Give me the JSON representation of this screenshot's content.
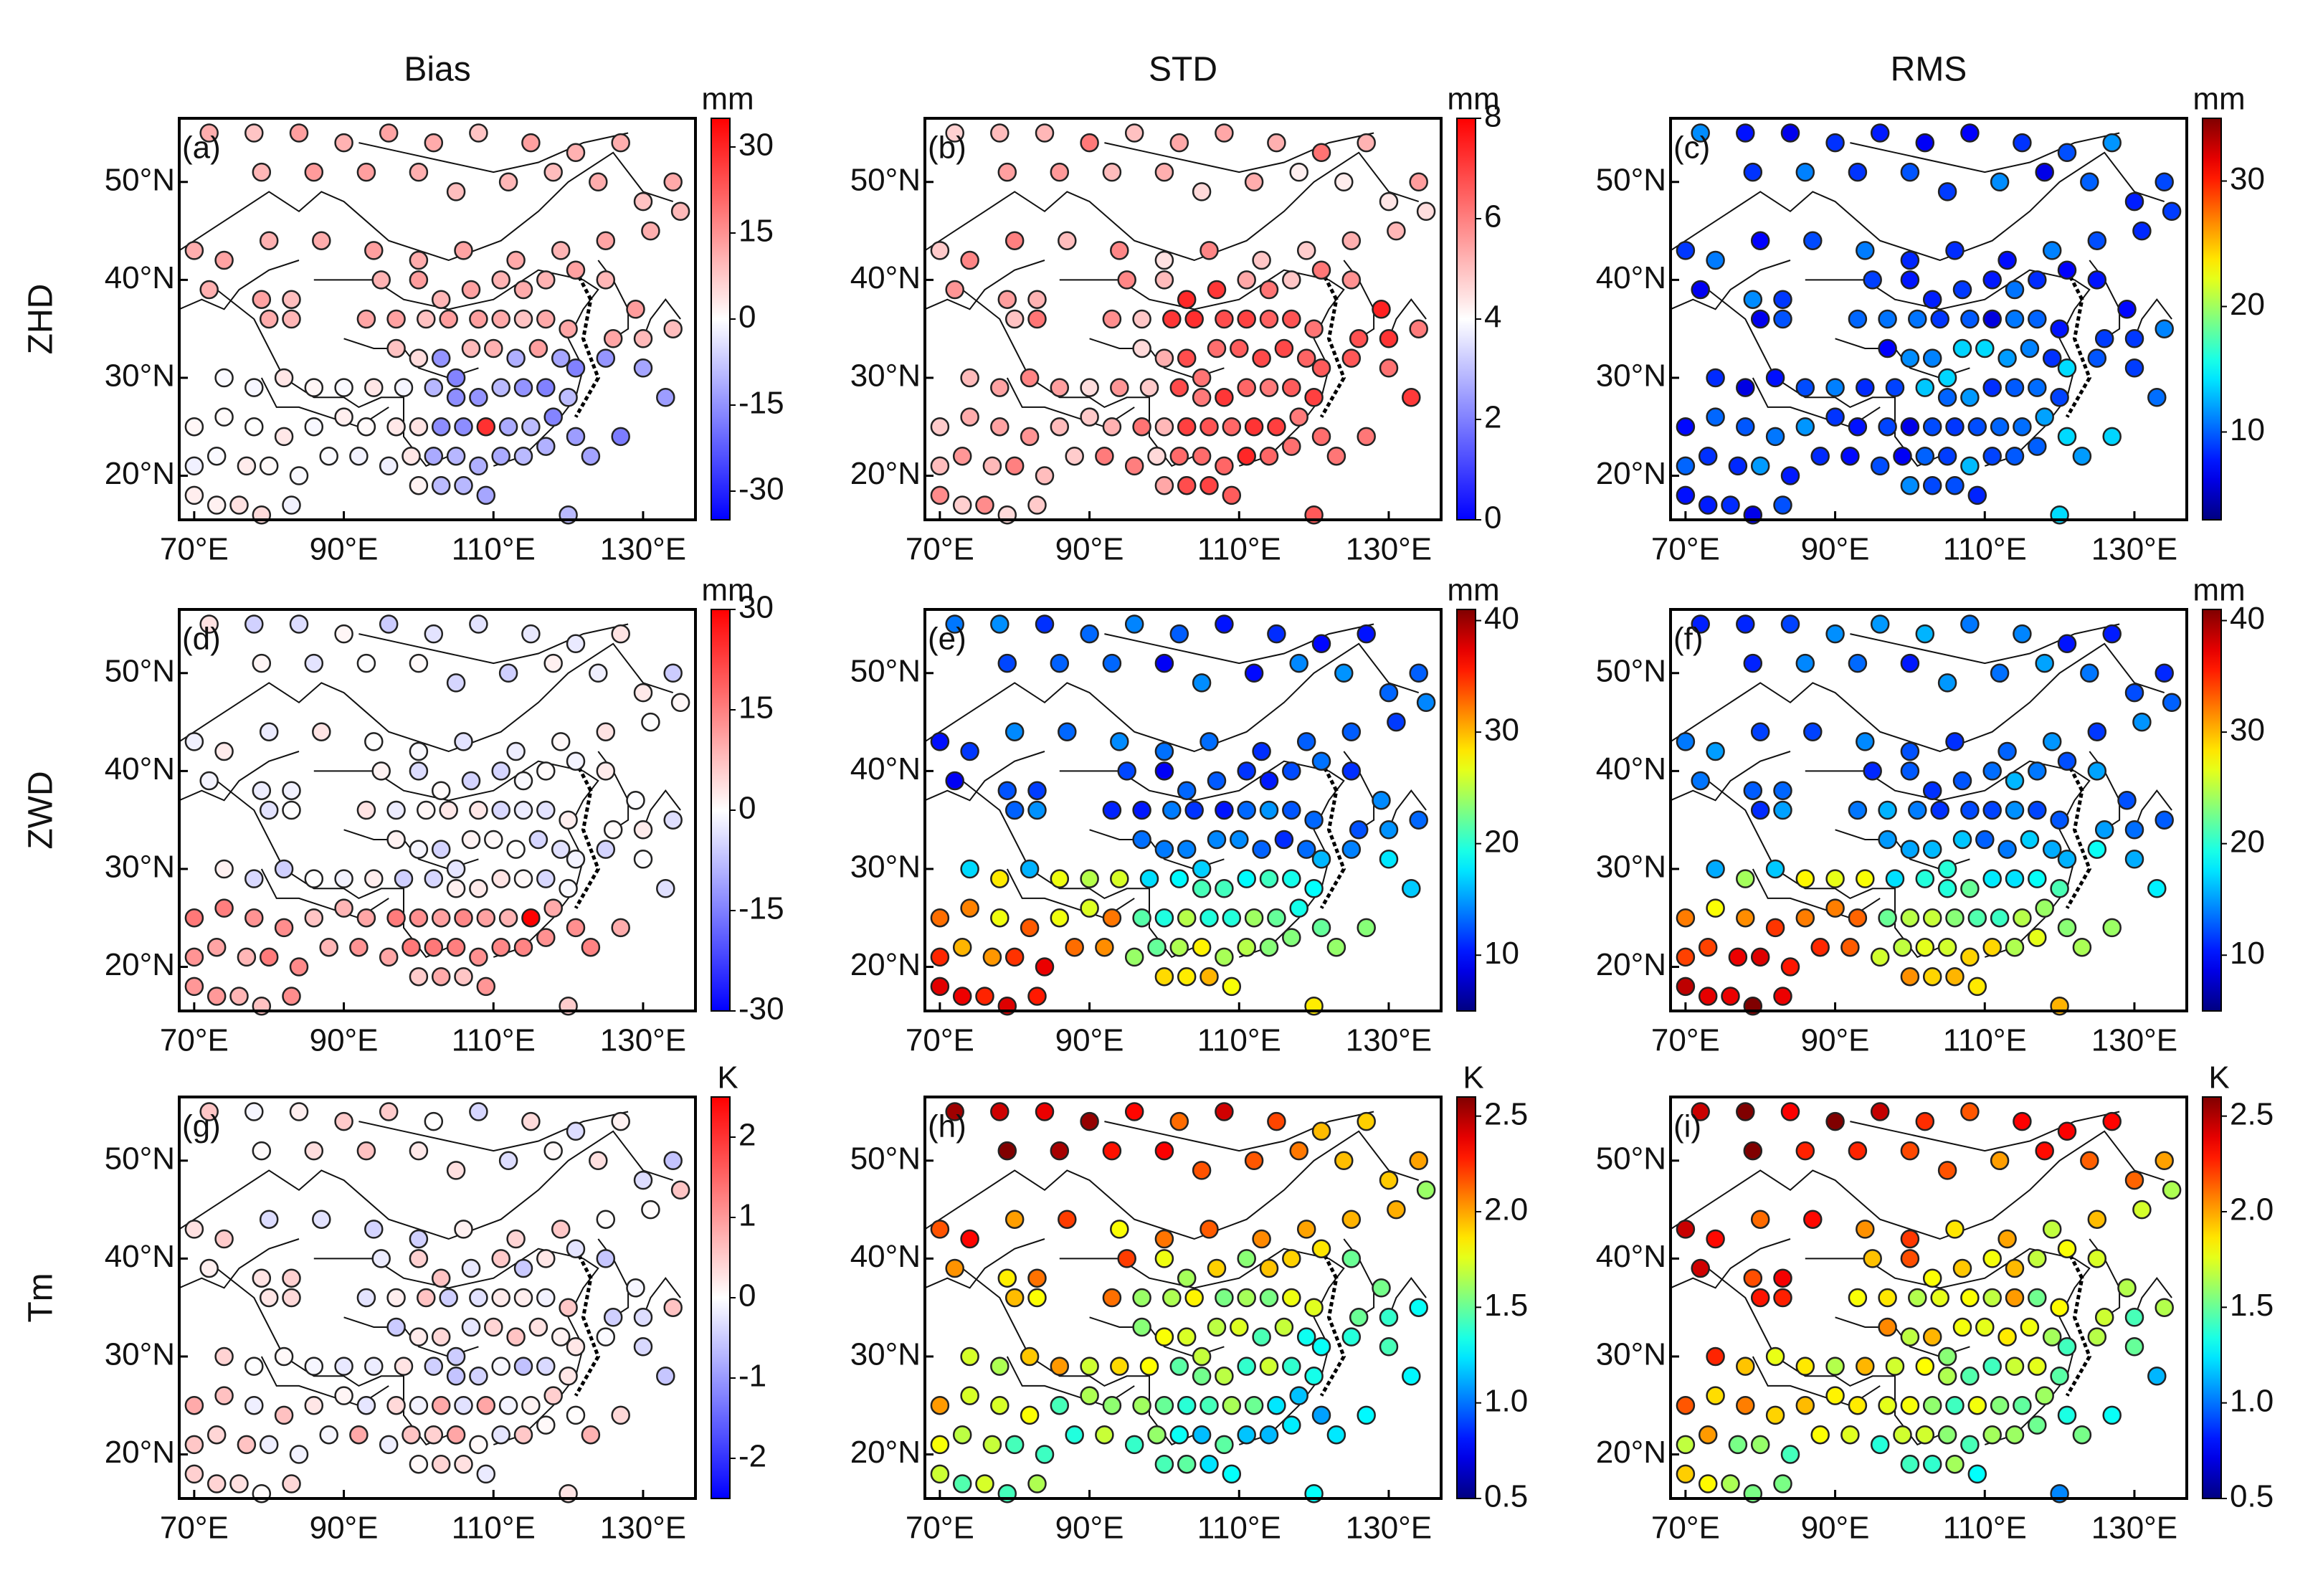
{
  "figure": {
    "column_titles": [
      "Bias",
      "STD",
      "RMS"
    ],
    "row_titles": [
      "ZHD",
      "ZWD",
      "Tm"
    ],
    "lat_ticks": [
      "20°N",
      "30°N",
      "40°N",
      "50°N"
    ],
    "lon_ticks": [
      "70°E",
      "90°E",
      "110°E",
      "130°E"
    ],
    "map_extent": {
      "lon_min": 68,
      "lon_max": 137,
      "lat_min": 15.5,
      "lat_max": 56.5
    }
  },
  "chart_data": [
    {
      "id": "a",
      "type": "scatter",
      "row": "ZHD",
      "column": "Bias",
      "panel_label": "(a)",
      "unit": "mm",
      "colormap": "diverging",
      "cbar_ticks": [
        "-30",
        "-15",
        "0",
        "15",
        "30"
      ],
      "cbar_tick_values": [
        -30,
        -15,
        0,
        15,
        30
      ],
      "range": [
        -35,
        35
      ]
    },
    {
      "id": "b",
      "type": "scatter",
      "row": "ZHD",
      "column": "STD",
      "panel_label": "(b)",
      "unit": "mm",
      "colormap": "diverging",
      "cbar_ticks": [
        "0",
        "2",
        "4",
        "6",
        "8"
      ],
      "cbar_tick_values": [
        0,
        2,
        4,
        6,
        8
      ],
      "range": [
        0,
        8
      ]
    },
    {
      "id": "c",
      "type": "scatter",
      "row": "ZHD",
      "column": "RMS",
      "panel_label": "(c)",
      "unit": "mm",
      "colormap": "jet",
      "cbar_ticks": [
        "10",
        "20",
        "30"
      ],
      "cbar_tick_values": [
        10,
        20,
        30
      ],
      "range": [
        3,
        35
      ]
    },
    {
      "id": "d",
      "type": "scatter",
      "row": "ZWD",
      "column": "Bias",
      "panel_label": "(d)",
      "unit": "mm",
      "colormap": "diverging",
      "cbar_ticks": [
        "-30",
        "-15",
        "0",
        "15",
        "30"
      ],
      "cbar_tick_values": [
        -30,
        -15,
        0,
        15,
        30
      ],
      "range": [
        -30,
        30
      ]
    },
    {
      "id": "e",
      "type": "scatter",
      "row": "ZWD",
      "column": "STD",
      "panel_label": "(e)",
      "unit": "mm",
      "colormap": "jet",
      "cbar_ticks": [
        "10",
        "20",
        "30",
        "40"
      ],
      "cbar_tick_values": [
        10,
        20,
        30,
        40
      ],
      "range": [
        5,
        41
      ]
    },
    {
      "id": "f",
      "type": "scatter",
      "row": "ZWD",
      "column": "RMS",
      "panel_label": "(f)",
      "unit": "mm",
      "colormap": "jet",
      "cbar_ticks": [
        "10",
        "20",
        "30",
        "40"
      ],
      "cbar_tick_values": [
        10,
        20,
        30,
        40
      ],
      "range": [
        5,
        41
      ]
    },
    {
      "id": "g",
      "type": "scatter",
      "row": "Tm",
      "column": "Bias",
      "panel_label": "(g)",
      "unit": "K",
      "colormap": "diverging",
      "cbar_ticks": [
        "-2",
        "-1",
        "0",
        "1",
        "2"
      ],
      "cbar_tick_values": [
        -2,
        -1,
        0,
        1,
        2
      ],
      "range": [
        -2.5,
        2.5
      ]
    },
    {
      "id": "h",
      "type": "scatter",
      "row": "Tm",
      "column": "STD",
      "panel_label": "(h)",
      "unit": "K",
      "colormap": "jet",
      "cbar_ticks": [
        "0.5",
        "1.0",
        "1.5",
        "2.0",
        "2.5"
      ],
      "cbar_tick_values": [
        0.5,
        1.0,
        1.5,
        2.0,
        2.5
      ],
      "range": [
        0.5,
        2.6
      ]
    },
    {
      "id": "i",
      "type": "scatter",
      "row": "Tm",
      "column": "RMS",
      "panel_label": "(i)",
      "unit": "K",
      "colormap": "jet",
      "cbar_ticks": [
        "0.5",
        "1.0",
        "1.5",
        "2.0",
        "2.5"
      ],
      "cbar_tick_values": [
        0.5,
        1.0,
        1.5,
        2.0,
        2.5
      ],
      "range": [
        0.5,
        2.6
      ]
    }
  ]
}
